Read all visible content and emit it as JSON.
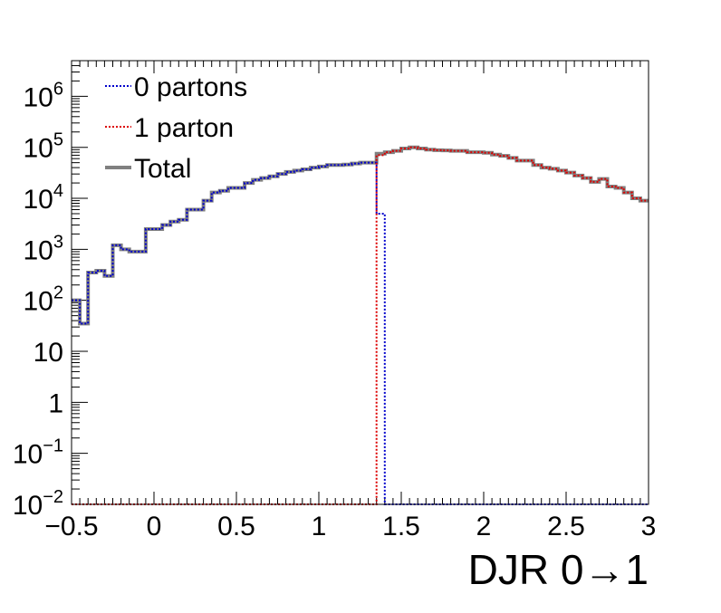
{
  "chart_data": {
    "type": "line",
    "xlabel": "DJR 0→1",
    "ylabel": "",
    "title": "",
    "xlim": [
      -0.5,
      3.0
    ],
    "ylim": [
      0.01,
      5000000
    ],
    "yscale": "log",
    "grid": false,
    "legend_position": "top-left",
    "x_ticks": [
      "−0.5",
      "0",
      "0.5",
      "1",
      "1.5",
      "2",
      "2.5",
      "3"
    ],
    "x_tick_values": [
      -0.5,
      0,
      0.5,
      1,
      1.5,
      2,
      2.5,
      3
    ],
    "y_ticks": [
      {
        "value": 0.01,
        "base": "10",
        "exp": "−2"
      },
      {
        "value": 0.1,
        "base": "10",
        "exp": "−1"
      },
      {
        "value": 1,
        "base": "1",
        "exp": ""
      },
      {
        "value": 10,
        "base": "10",
        "exp": ""
      },
      {
        "value": 100,
        "base": "10",
        "exp": "2"
      },
      {
        "value": 1000,
        "base": "10",
        "exp": "3"
      },
      {
        "value": 10000,
        "base": "10",
        "exp": "4"
      },
      {
        "value": 100000,
        "base": "10",
        "exp": "5"
      },
      {
        "value": 1000000,
        "base": "10",
        "exp": "6"
      }
    ],
    "bin_edges": [
      -0.5,
      -0.45,
      -0.4,
      -0.35,
      -0.3,
      -0.25,
      -0.2,
      -0.15,
      -0.1,
      -0.05,
      0,
      0.05,
      0.1,
      0.15,
      0.2,
      0.25,
      0.3,
      0.35,
      0.4,
      0.45,
      0.5,
      0.55,
      0.6,
      0.65,
      0.7,
      0.75,
      0.8,
      0.85,
      0.9,
      0.95,
      1,
      1.05,
      1.1,
      1.15,
      1.2,
      1.25,
      1.3,
      1.35,
      1.4,
      1.45,
      1.5,
      1.55,
      1.6,
      1.65,
      1.7,
      1.75,
      1.8,
      1.85,
      1.9,
      1.95,
      2,
      2.05,
      2.1,
      2.15,
      2.2,
      2.25,
      2.3,
      2.35,
      2.4,
      2.45,
      2.5,
      2.55,
      2.6,
      2.65,
      2.7,
      2.75,
      2.8,
      2.85,
      2.9,
      2.95,
      3
    ],
    "series": [
      {
        "name": "0 partons",
        "color": "#0000cc",
        "style": "dotted",
        "values": [
          100,
          35,
          350,
          380,
          300,
          1200,
          1000,
          900,
          900,
          2500,
          2500,
          3000,
          3500,
          3800,
          6000,
          6000,
          9000,
          13000,
          14000,
          16000,
          16000,
          20000,
          23000,
          25000,
          27000,
          30000,
          33000,
          35000,
          37000,
          40000,
          42000,
          45000,
          45000,
          46000,
          48000,
          50000,
          50000,
          5000,
          0,
          0,
          0,
          0,
          0,
          0,
          0,
          0,
          0,
          0,
          0,
          0,
          0,
          0,
          0,
          0,
          0,
          0,
          0,
          0,
          0,
          0,
          0,
          0,
          0,
          0,
          0,
          0,
          0,
          0,
          0,
          0
        ]
      },
      {
        "name": "1 parton",
        "color": "#dd0000",
        "style": "dotted",
        "values": [
          0,
          0,
          0,
          0,
          0,
          0,
          0,
          0,
          0,
          0,
          0,
          0,
          0,
          0,
          0,
          0,
          0,
          0,
          0,
          0,
          0,
          0,
          0,
          0,
          0,
          0,
          0,
          0,
          0,
          0,
          0,
          0,
          0,
          0,
          0,
          0,
          0,
          70000,
          80000,
          85000,
          95000,
          100000,
          95000,
          90000,
          88000,
          87000,
          85000,
          85000,
          80000,
          80000,
          78000,
          72000,
          68000,
          62000,
          55000,
          55000,
          45000,
          40000,
          38000,
          35000,
          32000,
          28000,
          25000,
          21000,
          24000,
          17000,
          16000,
          13000,
          10000,
          9000
        ]
      },
      {
        "name": "Total",
        "color": "#808080",
        "style": "solid",
        "values": [
          100,
          35,
          350,
          380,
          300,
          1200,
          1000,
          900,
          900,
          2500,
          2500,
          3000,
          3500,
          3800,
          6000,
          6000,
          9000,
          13000,
          14000,
          16000,
          16000,
          20000,
          23000,
          25000,
          27000,
          30000,
          33000,
          35000,
          37000,
          40000,
          42000,
          45000,
          45000,
          46000,
          48000,
          50000,
          50000,
          75000,
          80000,
          85000,
          95000,
          100000,
          95000,
          90000,
          88000,
          87000,
          85000,
          85000,
          80000,
          80000,
          78000,
          72000,
          68000,
          62000,
          55000,
          55000,
          45000,
          40000,
          38000,
          35000,
          32000,
          28000,
          25000,
          21000,
          24000,
          17000,
          16000,
          13000,
          10000,
          9000
        ]
      }
    ]
  }
}
